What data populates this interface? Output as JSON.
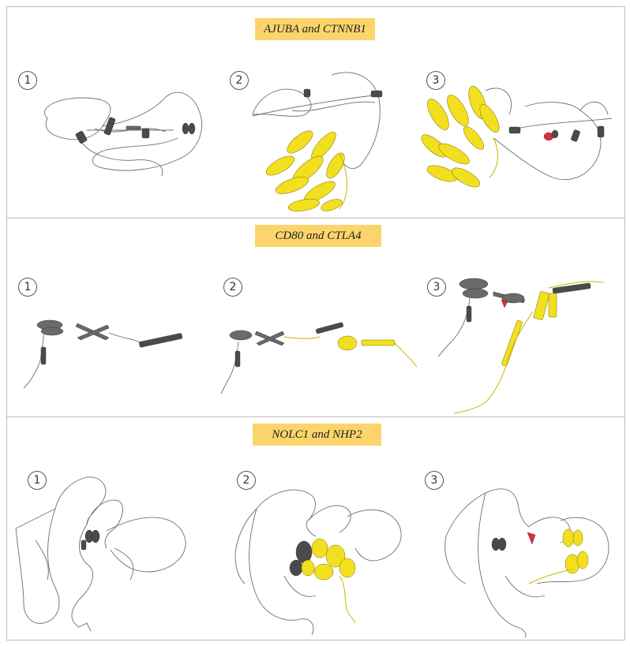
{
  "panels": [
    {
      "title": "AJUBA and CTNNB1",
      "labels": [
        "1",
        "2",
        "3"
      ]
    },
    {
      "title": "CD80 and CTLA4",
      "labels": [
        "1",
        "2",
        "3"
      ]
    },
    {
      "title": "NOLC1 and NHP2",
      "labels": [
        "1",
        "2",
        "3"
      ]
    }
  ],
  "colors": {
    "title_bg": "#fbd56b",
    "protein_a": "#555555",
    "protein_b": "#f2e020",
    "contact": "#d2303c",
    "border": "#bdbdbd"
  }
}
